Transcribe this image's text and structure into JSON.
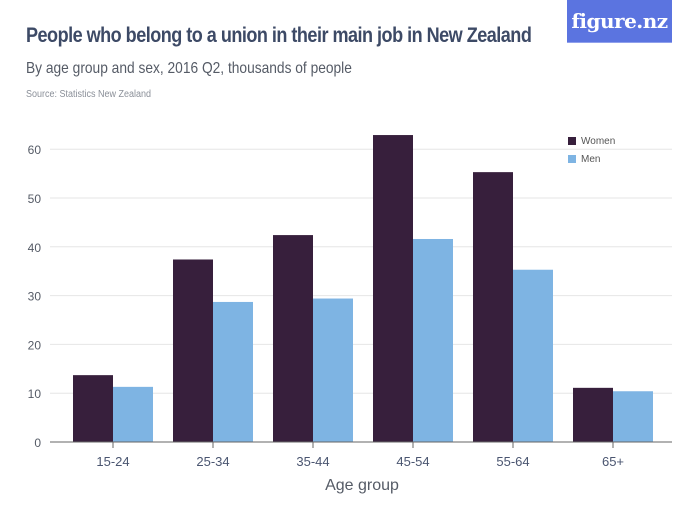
{
  "header": {
    "title": "People who belong to a union in their main job in New Zealand",
    "subtitle": "By age group and sex, 2016 Q2, thousands of people",
    "source": "Source: Statistics New Zealand",
    "logo": "figure.nz"
  },
  "colors": {
    "women": "#371f3c",
    "men": "#7eb4e3",
    "logo_bg": "#5b74e0",
    "title": "#3d4a66",
    "grid": "#e6e6e6",
    "axis": "#666666"
  },
  "legend": [
    {
      "label": "Women",
      "color": "#371f3c"
    },
    {
      "label": "Men",
      "color": "#7eb4e3"
    }
  ],
  "chart_data": {
    "type": "bar",
    "title": "People who belong to a union in their main job in New Zealand",
    "subtitle": "By age group and sex, 2016 Q2, thousands of people",
    "xlabel": "Age group",
    "ylabel": "",
    "categories": [
      "15-24",
      "25-34",
      "35-44",
      "45-54",
      "55-64",
      "65+"
    ],
    "series": [
      {
        "name": "Women",
        "values": [
          13.7,
          37.4,
          42.4,
          62.9,
          55.3,
          11.1
        ]
      },
      {
        "name": "Men",
        "values": [
          11.3,
          28.7,
          29.4,
          41.6,
          35.3,
          10.4
        ]
      }
    ],
    "yticks": [
      0,
      10,
      20,
      30,
      40,
      50,
      60
    ],
    "ylim": [
      0,
      66
    ],
    "grid": true,
    "legend_position": "top-right"
  }
}
